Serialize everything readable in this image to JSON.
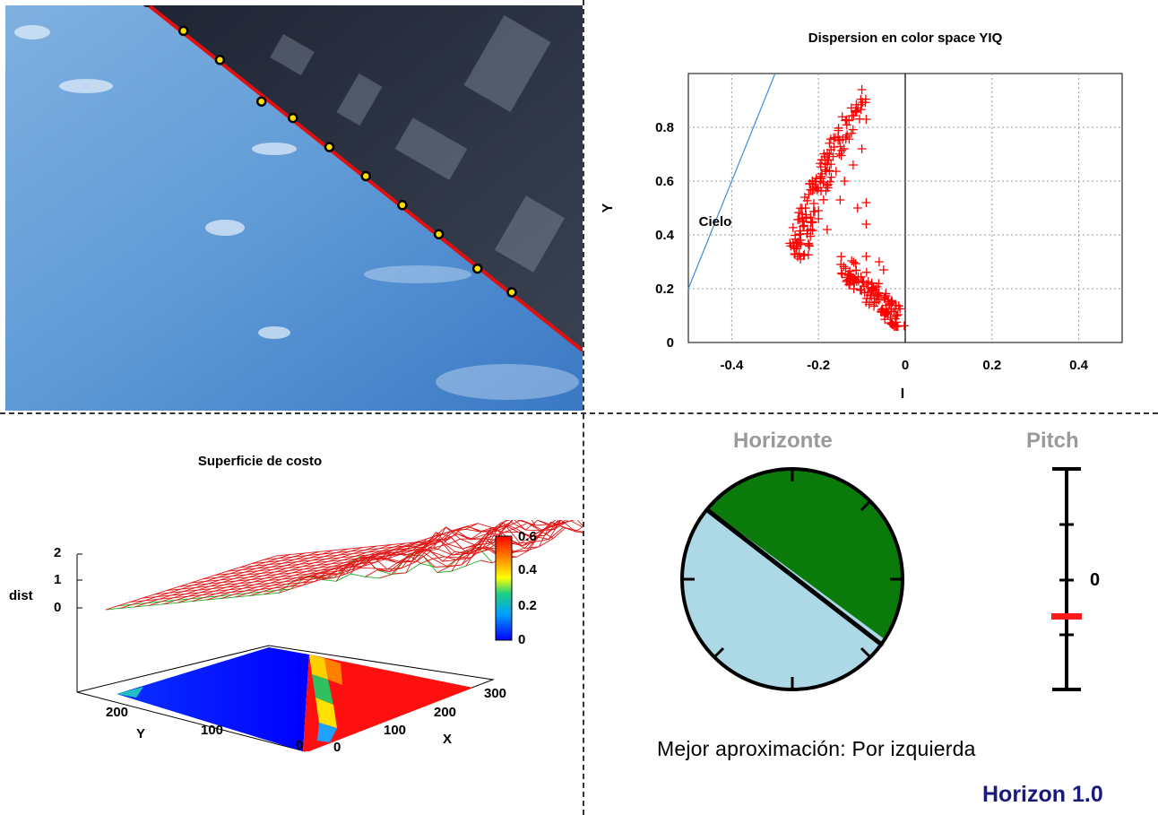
{
  "camera": {
    "horizon_points": 11,
    "colors": {
      "sky": "#6aa3d8",
      "ground": "#2b2f3d",
      "horizon_line": "#e01010"
    }
  },
  "scatter": {
    "title": "Dispersion en color space YIQ",
    "annotation": "Cielo"
  },
  "chart_data": [
    {
      "type": "scatter",
      "title": "Dispersion en color space YIQ",
      "xlabel": "I",
      "ylabel": "Y",
      "xlim": [
        -0.5,
        0.5
      ],
      "ylim": [
        0,
        1.0
      ],
      "xticks": [
        "-0.4",
        "-0.2",
        "0",
        "0.2",
        "0.4"
      ],
      "yticks": [
        "0",
        "0.2",
        "0.4",
        "0.6",
        "0.8"
      ],
      "grid": true,
      "annotation": {
        "text": "Cielo",
        "x": -0.48,
        "y": 0.5
      },
      "separator_line": {
        "from": [
          -0.5,
          0.2
        ],
        "to": [
          -0.3,
          1.0
        ]
      },
      "cluster_sky": {
        "i_range": [
          -0.26,
          -0.1
        ],
        "y_range": [
          0.3,
          0.93
        ],
        "count": 150
      },
      "cluster_ground": {
        "i_range": [
          -0.15,
          0.0
        ],
        "y_range": [
          0.06,
          0.32
        ],
        "count": 120
      },
      "colors": {
        "points": "#ff0000",
        "line": "#3a8fd8"
      }
    },
    {
      "type": "heatmap",
      "title": "Superficie de costo",
      "zlabel": "dist",
      "xlabel": "X",
      "ylabel": "Y",
      "zticks": [
        "0",
        "1",
        "2"
      ],
      "xticks": [
        "0",
        "100",
        "200",
        "300"
      ],
      "yticks": [
        "0",
        "100",
        "200"
      ],
      "colorbar_ticks": [
        "0",
        "0.2",
        "0.4",
        "0.6"
      ],
      "colorbar_range": [
        0,
        0.6
      ]
    }
  ],
  "surface": {
    "title": "Superficie de costo",
    "zlabel": "dist",
    "xlabel": "X",
    "ylabel": "Y"
  },
  "horizon": {
    "title": "Horizonte",
    "colors": {
      "sky": "#add8e6",
      "ground": "#0a7a0a"
    }
  },
  "pitch": {
    "title": "Pitch",
    "zero_label": "0",
    "marker_color": "#ff1a1a"
  },
  "status": {
    "text": "Mejor aproximación: Por izquierda"
  },
  "app": {
    "name": "Horizon 1.0"
  }
}
